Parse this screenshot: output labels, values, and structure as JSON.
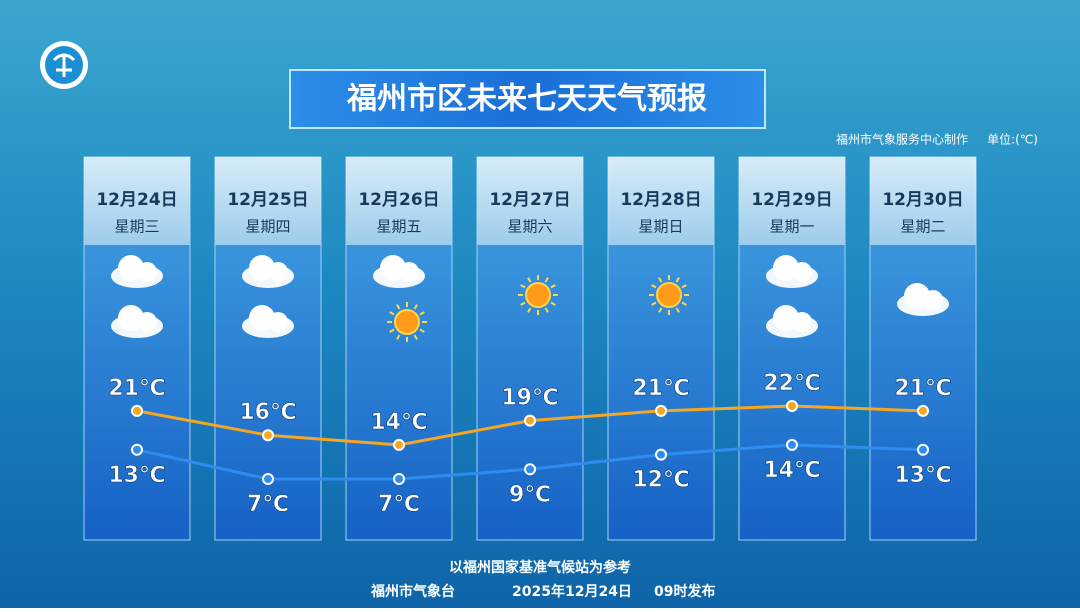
{
  "header": {
    "title": "福州市区未来七天天气预报",
    "credit": "福州市气象服务中心制作",
    "unit": "单位:(℃)"
  },
  "chart_data": {
    "type": "line",
    "categories": [
      "12月24日",
      "12月25日",
      "12月26日",
      "12月27日",
      "12月28日",
      "12月29日",
      "12月30日"
    ],
    "weekdays": [
      "星期三",
      "星期四",
      "星期五",
      "星期六",
      "星期日",
      "星期一",
      "星期二"
    ],
    "series": [
      {
        "color": "#f5a623",
        "values": [
          21,
          16,
          14,
          19,
          21,
          22,
          21
        ],
        "value_labels": [
          "21℃",
          "16℃",
          "14℃",
          "19℃",
          "21℃",
          "22℃",
          "21℃"
        ]
      },
      {
        "color": "#2f8cf0",
        "values": [
          13,
          7,
          7,
          9,
          12,
          14,
          13
        ],
        "value_labels": [
          "13℃",
          "7℃",
          "7℃",
          "9℃",
          "12℃",
          "14℃",
          "13℃"
        ]
      }
    ]
  },
  "footer": {
    "reference": "以福州国家基准气候站为参考",
    "issuer": "福州市气象台",
    "date": "2025年12月24日",
    "time": "09时发布"
  }
}
